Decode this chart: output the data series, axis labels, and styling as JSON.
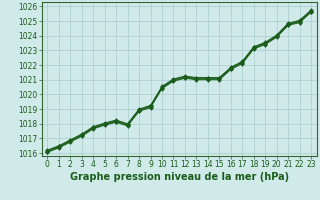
{
  "xlabel": "Graphe pression niveau de la mer (hPa)",
  "ylim": [
    1015.8,
    1026.3
  ],
  "xlim": [
    -0.5,
    23.5
  ],
  "yticks": [
    1016,
    1017,
    1018,
    1019,
    1020,
    1021,
    1022,
    1023,
    1024,
    1025,
    1026
  ],
  "xticks": [
    0,
    1,
    2,
    3,
    4,
    5,
    6,
    7,
    8,
    9,
    10,
    11,
    12,
    13,
    14,
    15,
    16,
    17,
    18,
    19,
    20,
    21,
    22,
    23
  ],
  "bg_color": "#d0eaea",
  "grid_color": "#aacccc",
  "line_color": "#1a5c1a",
  "marker_color": "#1a5c1a",
  "series": [
    [
      1016.05,
      1016.35,
      1016.75,
      1017.15,
      1017.65,
      1017.9,
      1018.1,
      1017.85,
      1018.85,
      1019.1,
      1020.4,
      1020.9,
      1021.1,
      1021.0,
      1021.0,
      1021.0,
      1021.7,
      1022.1,
      1023.1,
      1023.4,
      1023.9,
      1024.7,
      1024.9,
      1025.6
    ],
    [
      1016.1,
      1016.4,
      1016.8,
      1017.2,
      1017.7,
      1017.95,
      1018.15,
      1017.9,
      1018.9,
      1019.15,
      1020.45,
      1020.95,
      1021.15,
      1021.05,
      1021.05,
      1021.05,
      1021.75,
      1022.15,
      1023.15,
      1023.45,
      1023.95,
      1024.75,
      1024.95,
      1025.65
    ],
    [
      1016.15,
      1016.45,
      1016.85,
      1017.25,
      1017.75,
      1018.0,
      1018.2,
      1017.95,
      1018.95,
      1019.2,
      1020.5,
      1021.0,
      1021.2,
      1021.1,
      1021.1,
      1021.1,
      1021.8,
      1022.2,
      1023.2,
      1023.5,
      1024.0,
      1024.8,
      1025.0,
      1025.7
    ],
    [
      1016.2,
      1016.5,
      1016.9,
      1017.3,
      1017.8,
      1018.05,
      1018.25,
      1018.0,
      1019.0,
      1019.25,
      1020.55,
      1021.05,
      1021.25,
      1021.15,
      1021.15,
      1021.15,
      1021.85,
      1022.25,
      1023.25,
      1023.55,
      1024.05,
      1024.85,
      1025.05,
      1025.75
    ]
  ],
  "tick_fontsize": 5.5,
  "label_fontsize": 7.0,
  "linewidth": 0.7,
  "markersize": 2.0
}
